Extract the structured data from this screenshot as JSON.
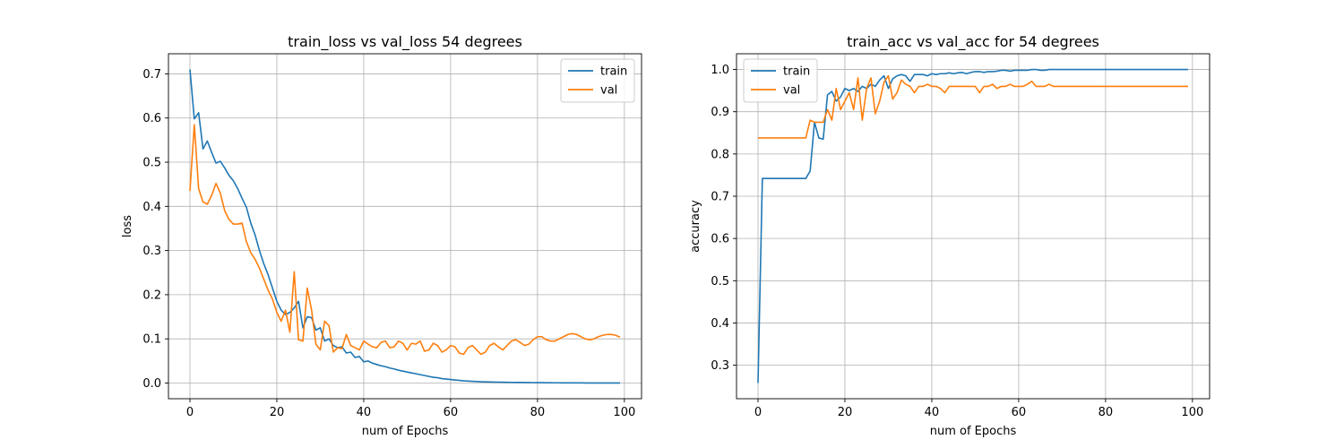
{
  "chart_data": [
    {
      "type": "line",
      "title": "train_loss vs val_loss 54 degrees",
      "xlabel": "num of Epochs",
      "ylabel": "loss",
      "xlim": [
        -4.95,
        103.95
      ],
      "ylim": [
        -0.0355,
        0.7455
      ],
      "xticks": [
        0,
        20,
        40,
        60,
        80,
        100
      ],
      "yticks": [
        0.0,
        0.1,
        0.2,
        0.3,
        0.4,
        0.5,
        0.6,
        0.7
      ],
      "grid": true,
      "legend_position": "upper right",
      "colors": {
        "train": "#1f77b4",
        "val": "#ff7f0e"
      },
      "series": [
        {
          "name": "train",
          "values": [
            0.71,
            0.598,
            0.612,
            0.53,
            0.548,
            0.522,
            0.498,
            0.502,
            0.487,
            0.47,
            0.458,
            0.44,
            0.418,
            0.398,
            0.362,
            0.335,
            0.3,
            0.27,
            0.245,
            0.215,
            0.185,
            0.165,
            0.155,
            0.16,
            0.17,
            0.185,
            0.125,
            0.15,
            0.148,
            0.12,
            0.125,
            0.095,
            0.1,
            0.085,
            0.08,
            0.082,
            0.068,
            0.07,
            0.058,
            0.06,
            0.048,
            0.05,
            0.045,
            0.042,
            0.039,
            0.037,
            0.034,
            0.032,
            0.029,
            0.027,
            0.025,
            0.023,
            0.021,
            0.019,
            0.017,
            0.015,
            0.013,
            0.012,
            0.01,
            0.009,
            0.008,
            0.007,
            0.006,
            0.005,
            0.0045,
            0.004,
            0.0035,
            0.003,
            0.0027,
            0.0024,
            0.0022,
            0.002,
            0.0018,
            0.0016,
            0.0015,
            0.0014,
            0.0013,
            0.0012,
            0.0011,
            0.001,
            0.0009,
            0.0008,
            0.0007,
            0.0006,
            0.0005,
            0.0005,
            0.0004,
            0.0004,
            0.0003,
            0.0003,
            0.0003,
            0.0002,
            0.0002,
            0.0002,
            0.0002,
            0.0001,
            0.0001,
            0.0001,
            0.0001,
            0.0001
          ]
        },
        {
          "name": "val",
          "values": [
            0.435,
            0.585,
            0.44,
            0.41,
            0.405,
            0.425,
            0.452,
            0.43,
            0.39,
            0.37,
            0.36,
            0.36,
            0.362,
            0.32,
            0.295,
            0.28,
            0.26,
            0.235,
            0.21,
            0.19,
            0.16,
            0.14,
            0.165,
            0.115,
            0.252,
            0.098,
            0.095,
            0.215,
            0.165,
            0.088,
            0.075,
            0.14,
            0.13,
            0.07,
            0.08,
            0.078,
            0.11,
            0.085,
            0.08,
            0.075,
            0.095,
            0.088,
            0.082,
            0.08,
            0.092,
            0.095,
            0.08,
            0.082,
            0.095,
            0.09,
            0.075,
            0.09,
            0.088,
            0.095,
            0.072,
            0.075,
            0.09,
            0.085,
            0.07,
            0.075,
            0.085,
            0.082,
            0.068,
            0.065,
            0.08,
            0.085,
            0.075,
            0.065,
            0.07,
            0.085,
            0.09,
            0.082,
            0.075,
            0.085,
            0.095,
            0.098,
            0.092,
            0.085,
            0.088,
            0.098,
            0.105,
            0.105,
            0.098,
            0.095,
            0.095,
            0.1,
            0.105,
            0.11,
            0.112,
            0.11,
            0.105,
            0.1,
            0.098,
            0.1,
            0.105,
            0.108,
            0.11,
            0.11,
            0.108,
            0.104
          ]
        }
      ]
    },
    {
      "type": "line",
      "title": "train_acc vs val_acc for 54 degrees",
      "xlabel": "num of Epochs",
      "ylabel": "accuracy",
      "xlim": [
        -4.95,
        103.95
      ],
      "ylim": [
        0.2207,
        1.0372
      ],
      "xticks": [
        0,
        20,
        40,
        60,
        80,
        100
      ],
      "yticks": [
        0.3,
        0.4,
        0.5,
        0.6,
        0.7,
        0.8,
        0.9,
        1.0
      ],
      "grid": true,
      "legend_position": "upper left",
      "colors": {
        "train": "#1f77b4",
        "val": "#ff7f0e"
      },
      "series": [
        {
          "name": "train",
          "values": [
            0.258,
            0.742,
            0.742,
            0.742,
            0.742,
            0.742,
            0.742,
            0.742,
            0.742,
            0.742,
            0.742,
            0.742,
            0.76,
            0.875,
            0.838,
            0.835,
            0.94,
            0.948,
            0.925,
            0.935,
            0.955,
            0.95,
            0.955,
            0.948,
            0.96,
            0.955,
            0.965,
            0.96,
            0.975,
            0.985,
            0.955,
            0.978,
            0.985,
            0.988,
            0.985,
            0.972,
            0.988,
            0.988,
            0.988,
            0.985,
            0.99,
            0.988,
            0.99,
            0.99,
            0.992,
            0.99,
            0.992,
            0.993,
            0.99,
            0.993,
            0.995,
            0.995,
            0.993,
            0.995,
            0.995,
            0.996,
            0.998,
            0.998,
            0.996,
            0.998,
            0.998,
            0.998,
            0.998,
            1.0,
            1.0,
            0.998,
            0.998,
            1.0,
            1.0,
            1.0,
            1.0,
            1.0,
            1.0,
            1.0,
            1.0,
            1.0,
            1.0,
            1.0,
            1.0,
            1.0,
            1.0,
            1.0,
            1.0,
            1.0,
            1.0,
            1.0,
            1.0,
            1.0,
            1.0,
            1.0,
            1.0,
            1.0,
            1.0,
            1.0,
            1.0,
            1.0,
            1.0,
            1.0,
            1.0,
            1.0
          ]
        },
        {
          "name": "val",
          "values": [
            0.838,
            0.838,
            0.838,
            0.838,
            0.838,
            0.838,
            0.838,
            0.838,
            0.838,
            0.838,
            0.838,
            0.838,
            0.88,
            0.875,
            0.875,
            0.875,
            0.905,
            0.88,
            0.955,
            0.905,
            0.925,
            0.945,
            0.905,
            0.98,
            0.88,
            0.955,
            0.98,
            0.895,
            0.925,
            0.97,
            0.985,
            0.93,
            0.945,
            0.975,
            0.965,
            0.96,
            0.945,
            0.96,
            0.96,
            0.965,
            0.96,
            0.96,
            0.955,
            0.945,
            0.96,
            0.96,
            0.96,
            0.96,
            0.96,
            0.96,
            0.96,
            0.945,
            0.96,
            0.96,
            0.965,
            0.955,
            0.96,
            0.96,
            0.965,
            0.96,
            0.96,
            0.96,
            0.965,
            0.972,
            0.96,
            0.96,
            0.96,
            0.965,
            0.96,
            0.96,
            0.96,
            0.96,
            0.96,
            0.96,
            0.96,
            0.96,
            0.96,
            0.96,
            0.96,
            0.96,
            0.96,
            0.96,
            0.96,
            0.96,
            0.96,
            0.96,
            0.96,
            0.96,
            0.96,
            0.96,
            0.96,
            0.96,
            0.96,
            0.96,
            0.96,
            0.96,
            0.96,
            0.96,
            0.96,
            0.96
          ]
        }
      ]
    }
  ]
}
